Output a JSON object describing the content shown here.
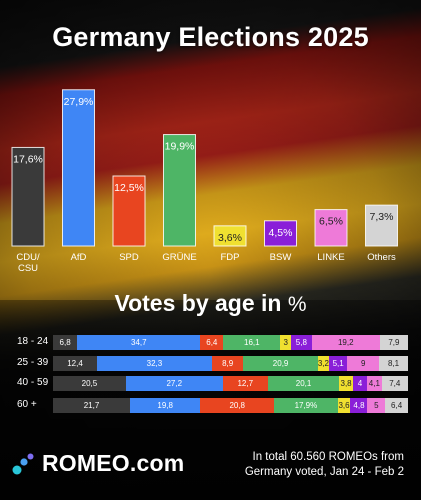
{
  "title": "Germany Elections 2025",
  "subtitle_text": "Votes by age in",
  "subtitle_unit": "%",
  "chart_data": [
    {
      "type": "bar",
      "title": "Germany Elections 2025",
      "categories": [
        "CDU/\nCSU",
        "AfD",
        "SPD",
        "GRÜNE",
        "FDP",
        "BSW",
        "LINKE",
        "Others"
      ],
      "values": [
        17.6,
        27.9,
        12.5,
        19.9,
        3.6,
        4.5,
        6.5,
        7.3
      ],
      "data_labels": [
        "17,6%",
        "27,9%",
        "12,5%",
        "19,9%",
        "3,6%",
        "4,5%",
        "6,5%",
        "7,3%"
      ],
      "colors": [
        "#3a3a3a",
        "#3f86f5",
        "#e84520",
        "#4eb566",
        "#f0e030",
        "#8a1fd8",
        "#ee7ad8",
        "#d4d4d4"
      ],
      "label_colors": [
        "#ffffff",
        "#ffffff",
        "#ffffff",
        "#ffffff",
        "#222222",
        "#ffffff",
        "#222222",
        "#222222"
      ],
      "ylim": [
        0,
        30
      ]
    },
    {
      "type": "bar",
      "stacked": true,
      "orientation": "horizontal",
      "title": "Votes by age in %",
      "categories": [
        "18 - 24",
        "25 - 39",
        "40 - 59",
        "60 +"
      ],
      "series": [
        {
          "name": "CDU/CSU",
          "color": "#3a3a3a",
          "values": [
            6.8,
            12.4,
            20.5,
            21.7
          ],
          "labels": [
            "6,8",
            "12,4",
            "20,5",
            "21,7"
          ]
        },
        {
          "name": "AfD",
          "color": "#3f86f5",
          "values": [
            34.7,
            32.3,
            27.2,
            19.8
          ],
          "labels": [
            "34,7",
            "32,3",
            "27,2",
            "19,8"
          ]
        },
        {
          "name": "SPD",
          "color": "#e84520",
          "values": [
            6.4,
            8.9,
            12.7,
            20.8
          ],
          "labels": [
            "6,4",
            "8,9",
            "12,7",
            "20,8"
          ]
        },
        {
          "name": "GRÜNE",
          "color": "#4eb566",
          "values": [
            16.1,
            20.9,
            20.1,
            17.9
          ],
          "labels": [
            "16,1",
            "20,9",
            "20,1",
            "17,9%"
          ]
        },
        {
          "name": "FDP",
          "color": "#f0e030",
          "values": [
            3,
            3.2,
            3.8,
            3.6
          ],
          "labels": [
            "3",
            "3,2",
            "3,8",
            "3,6"
          ]
        },
        {
          "name": "BSW",
          "color": "#8a1fd8",
          "values": [
            5.8,
            5.1,
            4,
            4.8
          ],
          "labels": [
            "5,8",
            "5,1",
            "4",
            "4,8"
          ]
        },
        {
          "name": "LINKE",
          "color": "#ee7ad8",
          "values": [
            19.2,
            9,
            4.1,
            5
          ],
          "labels": [
            "19,2",
            "9",
            "4,1",
            "5"
          ]
        },
        {
          "name": "Others",
          "color": "#d4d4d4",
          "values": [
            7.9,
            8.1,
            7.4,
            6.4
          ],
          "labels": [
            "7,9",
            "8,1",
            "7,4",
            "6,4"
          ]
        }
      ]
    }
  ],
  "footer": {
    "brand": "ROMEO.com",
    "note_line1": "In total 60.560 ROMEOs from",
    "note_line2": "Germany voted, Jan 24 - Feb 2"
  }
}
